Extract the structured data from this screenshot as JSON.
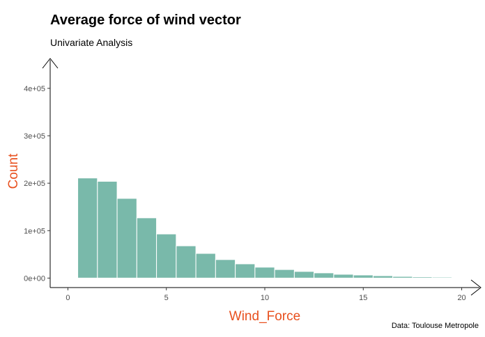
{
  "chart_data": {
    "type": "bar",
    "title": "Average force of wind vector",
    "subtitle": "Univariate Analysis",
    "caption": "Data: Toulouse Metropole",
    "xlabel": "Wind_Force",
    "ylabel": "Count",
    "xlim": [
      -0.9,
      20.9
    ],
    "ylim": [
      -20000,
      460000
    ],
    "x_ticks": [
      0,
      5,
      10,
      15,
      20
    ],
    "x_tick_labels": [
      "0",
      "5",
      "10",
      "15",
      "20"
    ],
    "y_ticks": [
      0,
      100000,
      200000,
      300000,
      400000
    ],
    "y_tick_labels": [
      "0e+00",
      "1e+05",
      "2e+05",
      "3e+05",
      "4e+05"
    ],
    "bin_width": 1,
    "bins_start": [
      0.5,
      1.5,
      2.5,
      3.5,
      4.5,
      5.5,
      6.5,
      7.5,
      8.5,
      9.5,
      10.5,
      11.5,
      12.5,
      13.5,
      14.5,
      15.5,
      16.5,
      17.5,
      18.5
    ],
    "values": [
      211000,
      204000,
      168000,
      127000,
      93000,
      68000,
      52000,
      39000,
      30000,
      23000,
      18000,
      14000,
      11000,
      8000,
      6500,
      5000,
      3500,
      2500,
      2000
    ],
    "grid": false,
    "colors": {
      "bar_fill": "#79b9aa",
      "bar_stroke": "#ffffff",
      "axis_title": "#e8501e",
      "axis_line": "#000000"
    }
  }
}
